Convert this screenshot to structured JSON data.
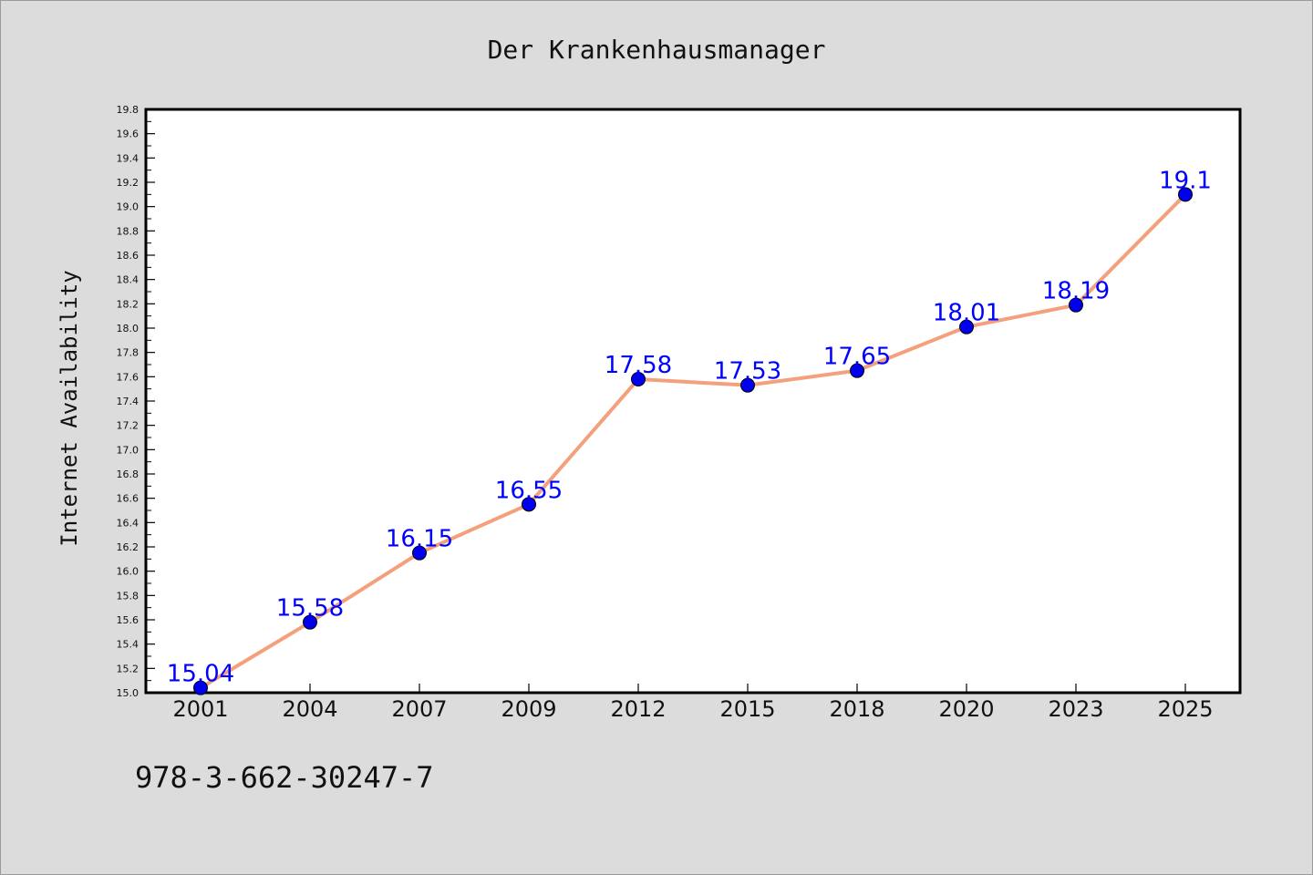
{
  "chart_data": {
    "type": "line",
    "title": "Der Krankenhausmanager",
    "xlabel": "",
    "ylabel": "Internet Availability",
    "categories": [
      "2001",
      "2004",
      "2007",
      "2009",
      "2012",
      "2015",
      "2018",
      "2020",
      "2023",
      "2025"
    ],
    "series": [
      {
        "values": [
          15.04,
          15.58,
          16.15,
          16.55,
          17.58,
          17.53,
          17.65,
          18.01,
          18.19,
          19.1
        ],
        "labels": [
          "15.04",
          "15.58",
          "16.15",
          "16.55",
          "17.58",
          "17.53",
          "17.65",
          "18.01",
          "18.19",
          "19.1"
        ]
      }
    ],
    "ylim": [
      15.0,
      19.8
    ],
    "yticks": [
      "15.0",
      "15.2",
      "15.4",
      "15.6",
      "15.8",
      "16.0",
      "16.2",
      "16.4",
      "16.6",
      "16.8",
      "17.0",
      "17.2",
      "17.4",
      "17.6",
      "17.8",
      "18.0",
      "18.2",
      "18.4",
      "18.6",
      "18.8",
      "19.0",
      "19.2",
      "19.4",
      "19.6",
      "19.8"
    ],
    "grid": false,
    "legend": "none",
    "colors": {
      "line": "#f4a07c",
      "marker": "#0000ee",
      "label": "#0000ff"
    }
  },
  "caption": "978-3-662-30247-7"
}
